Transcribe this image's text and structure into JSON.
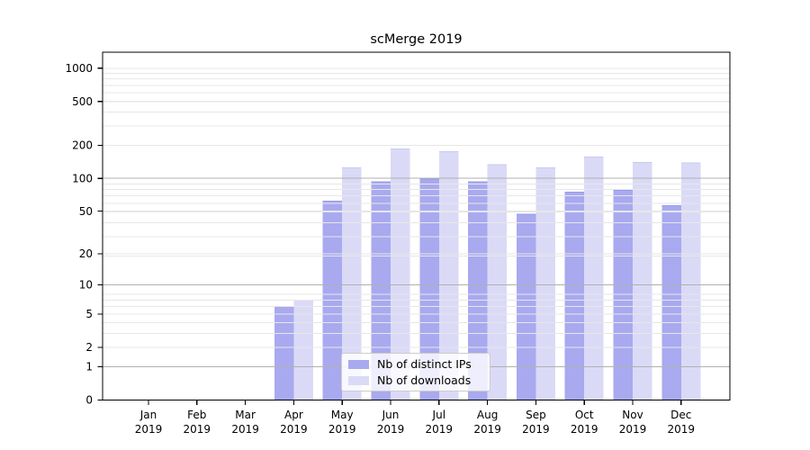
{
  "chart_data": {
    "type": "bar",
    "title": "scMerge 2019",
    "categories": [
      "Jan 2019",
      "Feb 2019",
      "Mar 2019",
      "Apr 2019",
      "May 2019",
      "Jun 2019",
      "Jul 2019",
      "Aug 2019",
      "Sep 2019",
      "Oct 2019",
      "Nov 2019",
      "Dec 2019"
    ],
    "series": [
      {
        "name": "Nb of distinct IPs",
        "color": "#a9a9f0",
        "edge_color": "#9a9ae9",
        "values": [
          0,
          0,
          0,
          6,
          62,
          93,
          98,
          93,
          47,
          75,
          78,
          56
        ]
      },
      {
        "name": "Nb of downloads",
        "color": "#dadaf7",
        "edge_color": "#c9c9f2",
        "values": [
          0,
          0,
          0,
          7,
          125,
          185,
          175,
          133,
          125,
          157,
          140,
          138
        ]
      }
    ],
    "yticks": [
      0,
      1,
      2,
      5,
      10,
      20,
      50,
      100,
      200,
      500,
      1000
    ],
    "scale": "log10(1+x)",
    "ylim": [
      0,
      1380
    ],
    "xlabel": "",
    "ylabel": "",
    "grid": true,
    "legend_position": "inside-bottom-center-left",
    "colors": {
      "background": "#ffffff",
      "axis": "#000000",
      "major_grid": "#b0b0b0",
      "minor_grid": "#e7e7e7",
      "tick_text": "#000000",
      "legend_border": "#cccccc"
    }
  }
}
